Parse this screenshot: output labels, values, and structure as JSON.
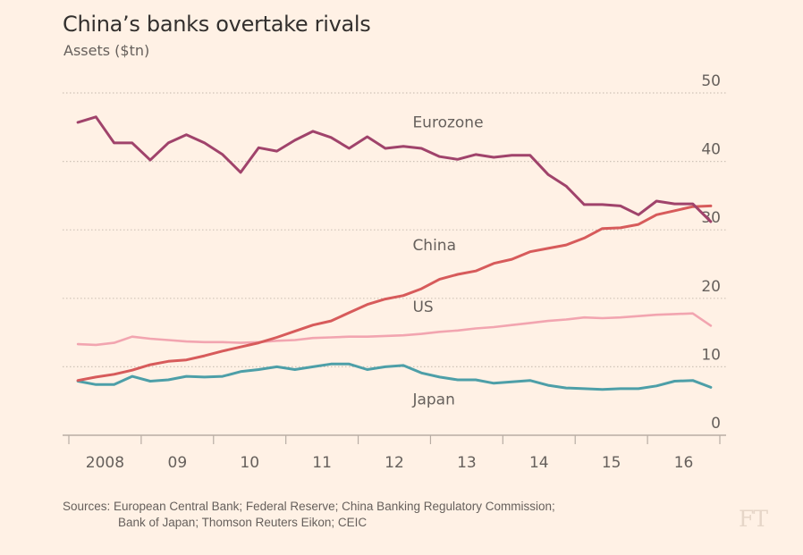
{
  "header": {
    "title": "China’s banks overtake rivals",
    "subtitle": "Assets ($tn)"
  },
  "footer": {
    "source_line1": "Sources: European Central Bank; Federal Reserve; China Banking Regulatory Commission;",
    "source_line2": "Bank of Japan; Thomson Reuters Eikon; CEIC",
    "logo": "FT"
  },
  "chart_data": {
    "type": "line",
    "title": "China’s banks overtake rivals",
    "subtitle": "Assets ($tn)",
    "xlabel": "",
    "ylabel": "Assets ($tn)",
    "ylim": [
      0,
      50
    ],
    "yticks": [
      0,
      10,
      20,
      30,
      40,
      50
    ],
    "ytick_labels": [
      "0",
      "10",
      "20",
      "30",
      "40",
      "50"
    ],
    "yaxis_side": "right",
    "grid": "horizontal dotted",
    "x_start": "2008 Q1",
    "x_frequency": "quarterly",
    "x_range": [
      2008,
      2017
    ],
    "xtick_labels": [
      "2008",
      "09",
      "10",
      "11",
      "12",
      "13",
      "14",
      "15",
      "16"
    ],
    "legend": "inline labels",
    "series": [
      {
        "name": "Eurozone",
        "color": "#a0436b",
        "label_position": [
          2013.0,
          45.0
        ],
        "values": [
          45.7,
          46.5,
          42.7,
          42.7,
          40.2,
          42.7,
          43.9,
          42.7,
          41.0,
          38.4,
          42.0,
          41.5,
          43.1,
          44.4,
          43.5,
          41.9,
          43.6,
          41.9,
          42.2,
          41.9,
          40.7,
          40.3,
          41.0,
          40.6,
          40.9,
          40.9,
          38.1,
          36.4,
          33.7,
          33.7,
          33.5,
          32.2,
          34.2,
          33.8,
          33.8,
          31.2
        ]
      },
      {
        "name": "China",
        "color": "#d75b5b",
        "label_position": [
          2013.0,
          27.0
        ],
        "values": [
          8.0,
          8.5,
          8.9,
          9.5,
          10.3,
          10.8,
          11.0,
          11.6,
          12.3,
          12.9,
          13.5,
          14.3,
          15.2,
          16.1,
          16.7,
          17.9,
          19.1,
          19.9,
          20.4,
          21.4,
          22.8,
          23.5,
          24.0,
          25.1,
          25.7,
          26.8,
          27.3,
          27.8,
          28.8,
          30.2,
          30.3,
          30.8,
          32.2,
          32.8,
          33.4,
          33.5
        ]
      },
      {
        "name": "US",
        "color": "#f2a5b0",
        "label_position": [
          2013.0,
          18.0
        ],
        "values": [
          13.3,
          13.2,
          13.5,
          14.4,
          14.1,
          13.9,
          13.7,
          13.6,
          13.6,
          13.5,
          13.6,
          13.8,
          13.9,
          14.2,
          14.3,
          14.4,
          14.4,
          14.5,
          14.6,
          14.8,
          15.1,
          15.3,
          15.6,
          15.8,
          16.1,
          16.4,
          16.7,
          16.9,
          17.2,
          17.1,
          17.2,
          17.4,
          17.6,
          17.7,
          17.8,
          16.0
        ]
      },
      {
        "name": "Japan",
        "color": "#4d9fa8",
        "label_position": [
          2013.0,
          4.5
        ],
        "values": [
          7.9,
          7.4,
          7.4,
          8.6,
          7.9,
          8.1,
          8.6,
          8.5,
          8.6,
          9.3,
          9.6,
          10.0,
          9.6,
          10.0,
          10.4,
          10.4,
          9.6,
          10.0,
          10.2,
          9.1,
          8.5,
          8.1,
          8.1,
          7.6,
          7.8,
          8.0,
          7.3,
          6.9,
          6.8,
          6.7,
          6.8,
          6.8,
          7.2,
          7.9,
          8.0,
          7.0
        ]
      }
    ]
  }
}
